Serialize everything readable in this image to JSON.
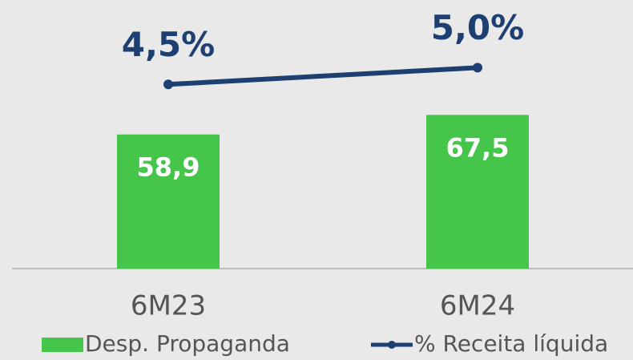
{
  "chart_data": {
    "type": "bar",
    "categories": [
      "6M23",
      "6M24"
    ],
    "series": [
      {
        "name": "Desp. Propaganda",
        "type": "bar",
        "color": "#45c64b",
        "values": [
          58.9,
          67.5
        ],
        "value_labels": [
          "58,9",
          "67,5"
        ]
      },
      {
        "name": "% Receita líquida",
        "type": "line",
        "axis": "y2",
        "color": "#1d3f72",
        "values": [
          4.5,
          5.0
        ],
        "value_labels": [
          "4,5%",
          "5,0%"
        ]
      }
    ],
    "ylim": [
      0,
      100
    ],
    "y2lim": [
      -1,
      5.8
    ],
    "legend": "bottom"
  }
}
